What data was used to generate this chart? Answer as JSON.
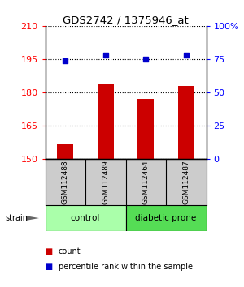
{
  "title": "GDS2742 / 1375946_at",
  "samples": [
    "GSM112488",
    "GSM112489",
    "GSM112464",
    "GSM112487"
  ],
  "bar_values": [
    157,
    184,
    177,
    183
  ],
  "percentile_values": [
    74,
    78,
    75,
    78
  ],
  "bar_color": "#cc0000",
  "dot_color": "#0000cc",
  "ylim_left": [
    150,
    210
  ],
  "ylim_right": [
    0,
    100
  ],
  "yticks_left": [
    150,
    165,
    180,
    195,
    210
  ],
  "yticks_right": [
    0,
    25,
    50,
    75,
    100
  ],
  "ytick_labels_right": [
    "0",
    "25",
    "50",
    "75",
    "100%"
  ],
  "groups": [
    {
      "label": "control",
      "samples": [
        0,
        1
      ],
      "color": "#aaffaa"
    },
    {
      "label": "diabetic prone",
      "samples": [
        2,
        3
      ],
      "color": "#55dd55"
    }
  ],
  "strain_label": "strain",
  "legend_items": [
    {
      "color": "#cc0000",
      "label": "count"
    },
    {
      "color": "#0000cc",
      "label": "percentile rank within the sample"
    }
  ],
  "sample_bg_color": "#cccccc",
  "background_color": "#ffffff"
}
